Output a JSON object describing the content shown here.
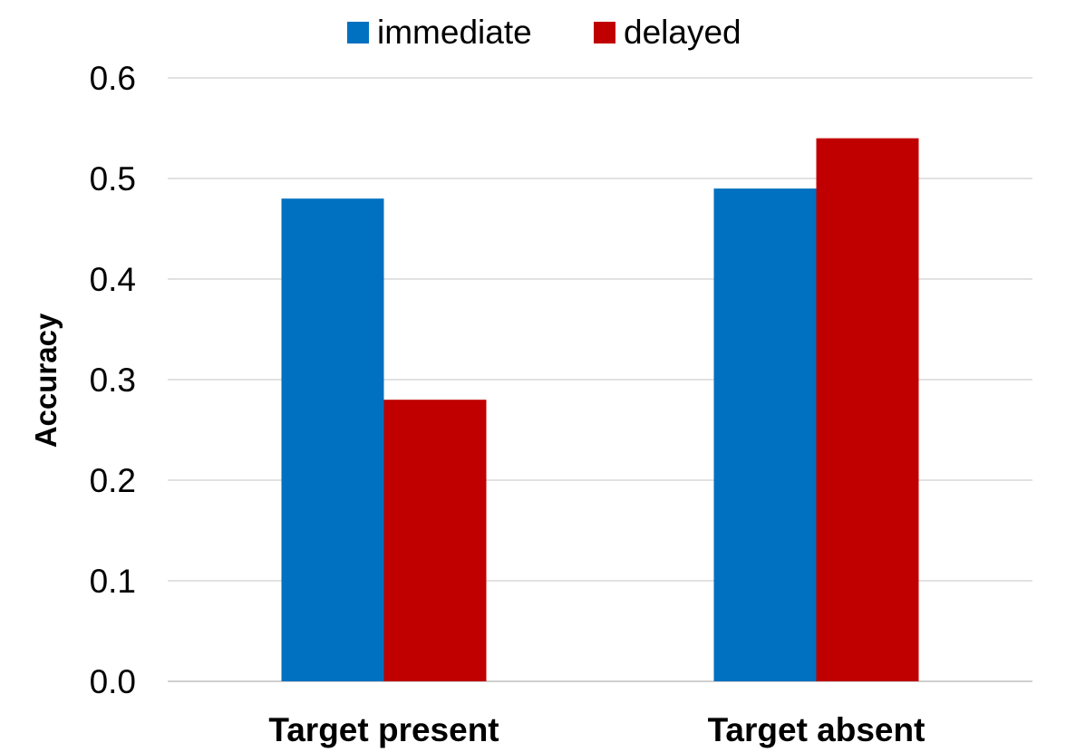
{
  "chart_data": {
    "type": "bar",
    "title": "",
    "xlabel": "",
    "ylabel": "Accuracy",
    "categories": [
      "Target present",
      "Target absent"
    ],
    "series": [
      {
        "name": "immediate",
        "color": "#0070c0",
        "values": [
          0.48,
          0.49
        ]
      },
      {
        "name": "delayed",
        "color": "#c00000",
        "values": [
          0.28,
          0.54
        ]
      }
    ],
    "ylim": [
      0,
      0.6
    ],
    "yticks": [
      "0.0",
      "0.1",
      "0.2",
      "0.3",
      "0.4",
      "0.5",
      "0.6"
    ],
    "grid": true,
    "legend_position": "top"
  }
}
